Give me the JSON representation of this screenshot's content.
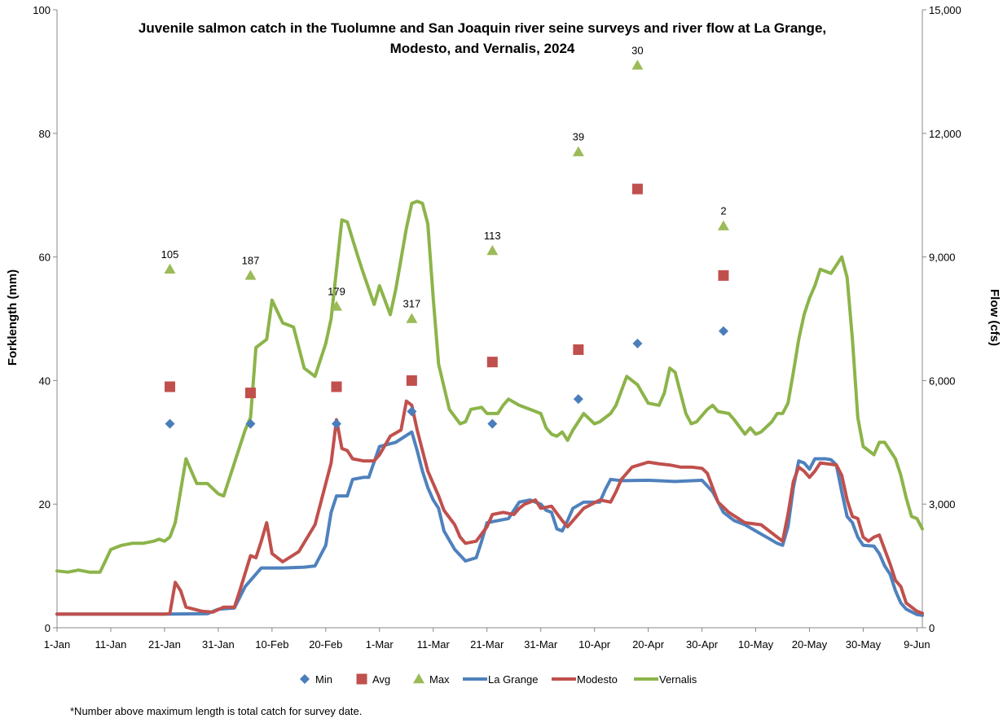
{
  "chart_data": {
    "type": "scatter+line",
    "title_lines": [
      "Juvenile salmon catch in the Tuolumne and San Joaquin river seine surveys and river flow at La Grange,",
      "Modesto, and Vernalis, 2024"
    ],
    "y_left_label": "Forklength (mm)",
    "y_right_label": "Flow (cfs)",
    "y_left_lim": [
      0,
      100
    ],
    "y_right_lim": [
      0,
      15000
    ],
    "y_left_ticks": [
      "0",
      "20",
      "40",
      "60",
      "80",
      "100"
    ],
    "y_right_ticks": [
      "0",
      "3,000",
      "6,000",
      "9,000",
      "12,000",
      "15,000"
    ],
    "x_tick_labels": [
      "1-Jan",
      "11-Jan",
      "21-Jan",
      "31-Jan",
      "10-Feb",
      "20-Feb",
      "1-Mar",
      "11-Mar",
      "21-Mar",
      "31-Mar",
      "10-Apr",
      "20-Apr",
      "30-Apr",
      "10-May",
      "20-May",
      "30-May",
      "9-Jun"
    ],
    "x_range_days": [
      0,
      161
    ],
    "survey_days": [
      21,
      36,
      52,
      66,
      81,
      97,
      108,
      124
    ],
    "survey_catch_labels": [
      "105",
      "187",
      "179",
      "317",
      "113",
      "39",
      "30",
      "2"
    ],
    "min_fl": [
      33,
      33,
      33,
      35,
      33,
      37,
      46,
      48
    ],
    "avg_fl": [
      39,
      38,
      39,
      40,
      43,
      45,
      71,
      57
    ],
    "max_fl": [
      58,
      57,
      52,
      50,
      61,
      77,
      91,
      65
    ],
    "flow": {
      "La Grange": [
        [
          0,
          330
        ],
        [
          10,
          330
        ],
        [
          20,
          330
        ],
        [
          28,
          340
        ],
        [
          30,
          450
        ],
        [
          33,
          480
        ],
        [
          35,
          1000
        ],
        [
          38,
          1450
        ],
        [
          42,
          1450
        ],
        [
          46,
          1470
        ],
        [
          48,
          1500
        ],
        [
          50,
          2000
        ],
        [
          51,
          2800
        ],
        [
          52,
          3200
        ],
        [
          54,
          3200
        ],
        [
          55,
          3600
        ],
        [
          57,
          3650
        ],
        [
          58,
          3650
        ],
        [
          60,
          4400
        ],
        [
          63,
          4500
        ],
        [
          66,
          4750
        ],
        [
          67,
          4300
        ],
        [
          68,
          3800
        ],
        [
          69,
          3400
        ],
        [
          70,
          3100
        ],
        [
          71,
          2900
        ],
        [
          72,
          2350
        ],
        [
          74,
          1900
        ],
        [
          76,
          1620
        ],
        [
          78,
          1700
        ],
        [
          79,
          2100
        ],
        [
          80,
          2550
        ],
        [
          82,
          2600
        ],
        [
          84,
          2650
        ],
        [
          86,
          3050
        ],
        [
          88,
          3100
        ],
        [
          90,
          3000
        ],
        [
          91,
          2850
        ],
        [
          92,
          2800
        ],
        [
          93,
          2400
        ],
        [
          94,
          2350
        ],
        [
          95,
          2600
        ],
        [
          96,
          2900
        ],
        [
          98,
          3050
        ],
        [
          101,
          3050
        ],
        [
          102,
          3350
        ],
        [
          103,
          3600
        ],
        [
          105,
          3570
        ],
        [
          110,
          3580
        ],
        [
          115,
          3550
        ],
        [
          120,
          3580
        ],
        [
          122,
          3300
        ],
        [
          124,
          2800
        ],
        [
          126,
          2600
        ],
        [
          128,
          2500
        ],
        [
          130,
          2350
        ],
        [
          132,
          2200
        ],
        [
          134,
          2050
        ],
        [
          135,
          2000
        ],
        [
          136,
          2450
        ],
        [
          137,
          3400
        ],
        [
          138,
          4050
        ],
        [
          139,
          4000
        ],
        [
          140,
          3850
        ],
        [
          141,
          4100
        ],
        [
          143,
          4100
        ],
        [
          144,
          4080
        ],
        [
          145,
          3950
        ],
        [
          146,
          3300
        ],
        [
          147,
          2700
        ],
        [
          148,
          2550
        ],
        [
          149,
          2200
        ],
        [
          150,
          2000
        ],
        [
          152,
          1980
        ],
        [
          153,
          1800
        ],
        [
          154,
          1500
        ],
        [
          155,
          1300
        ],
        [
          156,
          900
        ],
        [
          157,
          600
        ],
        [
          158,
          450
        ],
        [
          160,
          320
        ],
        [
          161,
          300
        ]
      ],
      "Modesto": [
        [
          0,
          330
        ],
        [
          15,
          330
        ],
        [
          20,
          330
        ],
        [
          21,
          350
        ],
        [
          22,
          1100
        ],
        [
          23,
          900
        ],
        [
          24,
          500
        ],
        [
          27,
          400
        ],
        [
          29,
          380
        ],
        [
          31,
          500
        ],
        [
          33,
          500
        ],
        [
          34,
          900
        ],
        [
          36,
          1750
        ],
        [
          37,
          1700
        ],
        [
          38,
          2100
        ],
        [
          39,
          2550
        ],
        [
          40,
          1800
        ],
        [
          42,
          1600
        ],
        [
          45,
          1850
        ],
        [
          48,
          2500
        ],
        [
          51,
          4000
        ],
        [
          52,
          5050
        ],
        [
          53,
          4350
        ],
        [
          54,
          4300
        ],
        [
          55,
          4100
        ],
        [
          57,
          4050
        ],
        [
          59,
          4050
        ],
        [
          60,
          4200
        ],
        [
          62,
          4650
        ],
        [
          64,
          4800
        ],
        [
          65,
          5500
        ],
        [
          66,
          5400
        ],
        [
          67,
          4800
        ],
        [
          68,
          4300
        ],
        [
          69,
          3800
        ],
        [
          70,
          3500
        ],
        [
          71,
          3200
        ],
        [
          72,
          2850
        ],
        [
          74,
          2500
        ],
        [
          75,
          2200
        ],
        [
          76,
          2050
        ],
        [
          78,
          2100
        ],
        [
          80,
          2450
        ],
        [
          81,
          2750
        ],
        [
          83,
          2800
        ],
        [
          85,
          2750
        ],
        [
          86,
          2900
        ],
        [
          87,
          3000
        ],
        [
          89,
          3100
        ],
        [
          90,
          2900
        ],
        [
          92,
          2950
        ],
        [
          94,
          2600
        ],
        [
          95,
          2450
        ],
        [
          96,
          2600
        ],
        [
          98,
          2900
        ],
        [
          101,
          3100
        ],
        [
          103,
          3050
        ],
        [
          104,
          3300
        ],
        [
          105,
          3600
        ],
        [
          107,
          3900
        ],
        [
          110,
          4020
        ],
        [
          112,
          3980
        ],
        [
          114,
          3950
        ],
        [
          116,
          3900
        ],
        [
          118,
          3900
        ],
        [
          120,
          3870
        ],
        [
          121,
          3750
        ],
        [
          123,
          3050
        ],
        [
          125,
          2800
        ],
        [
          128,
          2550
        ],
        [
          131,
          2500
        ],
        [
          134,
          2200
        ],
        [
          135,
          2100
        ],
        [
          136,
          2750
        ],
        [
          137,
          3550
        ],
        [
          138,
          3900
        ],
        [
          139,
          3800
        ],
        [
          140,
          3650
        ],
        [
          141,
          3800
        ],
        [
          142,
          4000
        ],
        [
          145,
          3950
        ],
        [
          146,
          3700
        ],
        [
          147,
          3100
        ],
        [
          148,
          2700
        ],
        [
          149,
          2650
        ],
        [
          150,
          2200
        ],
        [
          151,
          2100
        ],
        [
          152,
          2200
        ],
        [
          153,
          2250
        ],
        [
          154,
          1900
        ],
        [
          155,
          1550
        ],
        [
          156,
          1150
        ],
        [
          157,
          1000
        ],
        [
          158,
          600
        ],
        [
          160,
          400
        ],
        [
          161,
          350
        ]
      ],
      "Vernalis": [
        [
          0,
          1380
        ],
        [
          2,
          1350
        ],
        [
          4,
          1400
        ],
        [
          6,
          1350
        ],
        [
          8,
          1350
        ],
        [
          10,
          1900
        ],
        [
          12,
          2000
        ],
        [
          14,
          2050
        ],
        [
          16,
          2050
        ],
        [
          18,
          2100
        ],
        [
          19,
          2150
        ],
        [
          20,
          2100
        ],
        [
          21,
          2200
        ],
        [
          22,
          2550
        ],
        [
          24,
          4100
        ],
        [
          26,
          3500
        ],
        [
          28,
          3500
        ],
        [
          30,
          3250
        ],
        [
          31,
          3200
        ],
        [
          33,
          4000
        ],
        [
          35,
          4800
        ],
        [
          36,
          5100
        ],
        [
          37,
          6800
        ],
        [
          38,
          6900
        ],
        [
          39,
          7000
        ],
        [
          40,
          7950
        ],
        [
          42,
          7400
        ],
        [
          44,
          7300
        ],
        [
          46,
          6300
        ],
        [
          48,
          6100
        ],
        [
          50,
          6900
        ],
        [
          51,
          7500
        ],
        [
          53,
          9900
        ],
        [
          54,
          9850
        ],
        [
          56,
          9000
        ],
        [
          57,
          8600
        ],
        [
          59,
          7850
        ],
        [
          60,
          8300
        ],
        [
          62,
          7600
        ],
        [
          63,
          8200
        ],
        [
          65,
          9700
        ],
        [
          66,
          10300
        ],
        [
          67,
          10350
        ],
        [
          68,
          10300
        ],
        [
          69,
          9800
        ],
        [
          70,
          8000
        ],
        [
          71,
          6400
        ],
        [
          73,
          5300
        ],
        [
          75,
          4950
        ],
        [
          76,
          5000
        ],
        [
          77,
          5300
        ],
        [
          79,
          5350
        ],
        [
          80,
          5200
        ],
        [
          82,
          5200
        ],
        [
          83,
          5400
        ],
        [
          84,
          5550
        ],
        [
          86,
          5400
        ],
        [
          88,
          5300
        ],
        [
          90,
          5200
        ],
        [
          91,
          4850
        ],
        [
          92,
          4700
        ],
        [
          93,
          4650
        ],
        [
          94,
          4750
        ],
        [
          95,
          4550
        ],
        [
          96,
          4800
        ],
        [
          98,
          5200
        ],
        [
          100,
          4950
        ],
        [
          101,
          5000
        ],
        [
          103,
          5200
        ],
        [
          104,
          5400
        ],
        [
          106,
          6100
        ],
        [
          108,
          5900
        ],
        [
          110,
          5450
        ],
        [
          112,
          5400
        ],
        [
          113,
          5700
        ],
        [
          114,
          6300
        ],
        [
          115,
          6200
        ],
        [
          116,
          5700
        ],
        [
          117,
          5200
        ],
        [
          118,
          4950
        ],
        [
          119,
          5000
        ],
        [
          121,
          5300
        ],
        [
          122,
          5400
        ],
        [
          123,
          5250
        ],
        [
          125,
          5200
        ],
        [
          126,
          5050
        ],
        [
          128,
          4700
        ],
        [
          129,
          4850
        ],
        [
          130,
          4700
        ],
        [
          131,
          4750
        ],
        [
          133,
          5000
        ],
        [
          134,
          5200
        ],
        [
          135,
          5200
        ],
        [
          136,
          5450
        ],
        [
          137,
          6200
        ],
        [
          138,
          7000
        ],
        [
          139,
          7600
        ],
        [
          140,
          8000
        ],
        [
          141,
          8300
        ],
        [
          142,
          8700
        ],
        [
          143,
          8650
        ],
        [
          144,
          8600
        ],
        [
          145,
          8800
        ],
        [
          146,
          9000
        ],
        [
          147,
          8500
        ],
        [
          148,
          7000
        ],
        [
          149,
          5100
        ],
        [
          150,
          4400
        ],
        [
          151,
          4300
        ],
        [
          152,
          4200
        ],
        [
          153,
          4500
        ],
        [
          154,
          4500
        ],
        [
          155,
          4300
        ],
        [
          156,
          4100
        ],
        [
          157,
          3700
        ],
        [
          158,
          3150
        ],
        [
          159,
          2700
        ],
        [
          160,
          2650
        ],
        [
          161,
          2400
        ]
      ]
    },
    "legend": [
      {
        "name": "Min",
        "marker": "diamond",
        "color": "#4A7EBB"
      },
      {
        "name": "Avg",
        "marker": "square",
        "color": "#C0504D"
      },
      {
        "name": "Max",
        "marker": "triangle",
        "color": "#9BBB59"
      },
      {
        "name": "La Grange",
        "marker": "line",
        "color": "#4F81BD"
      },
      {
        "name": "Modesto",
        "marker": "line",
        "color": "#C0504D"
      },
      {
        "name": "Vernalis",
        "marker": "line",
        "color": "#8CB44A"
      }
    ],
    "grid": false,
    "legend_position": "bottom"
  },
  "footnote": "*Number above maximum length is total catch for survey date."
}
